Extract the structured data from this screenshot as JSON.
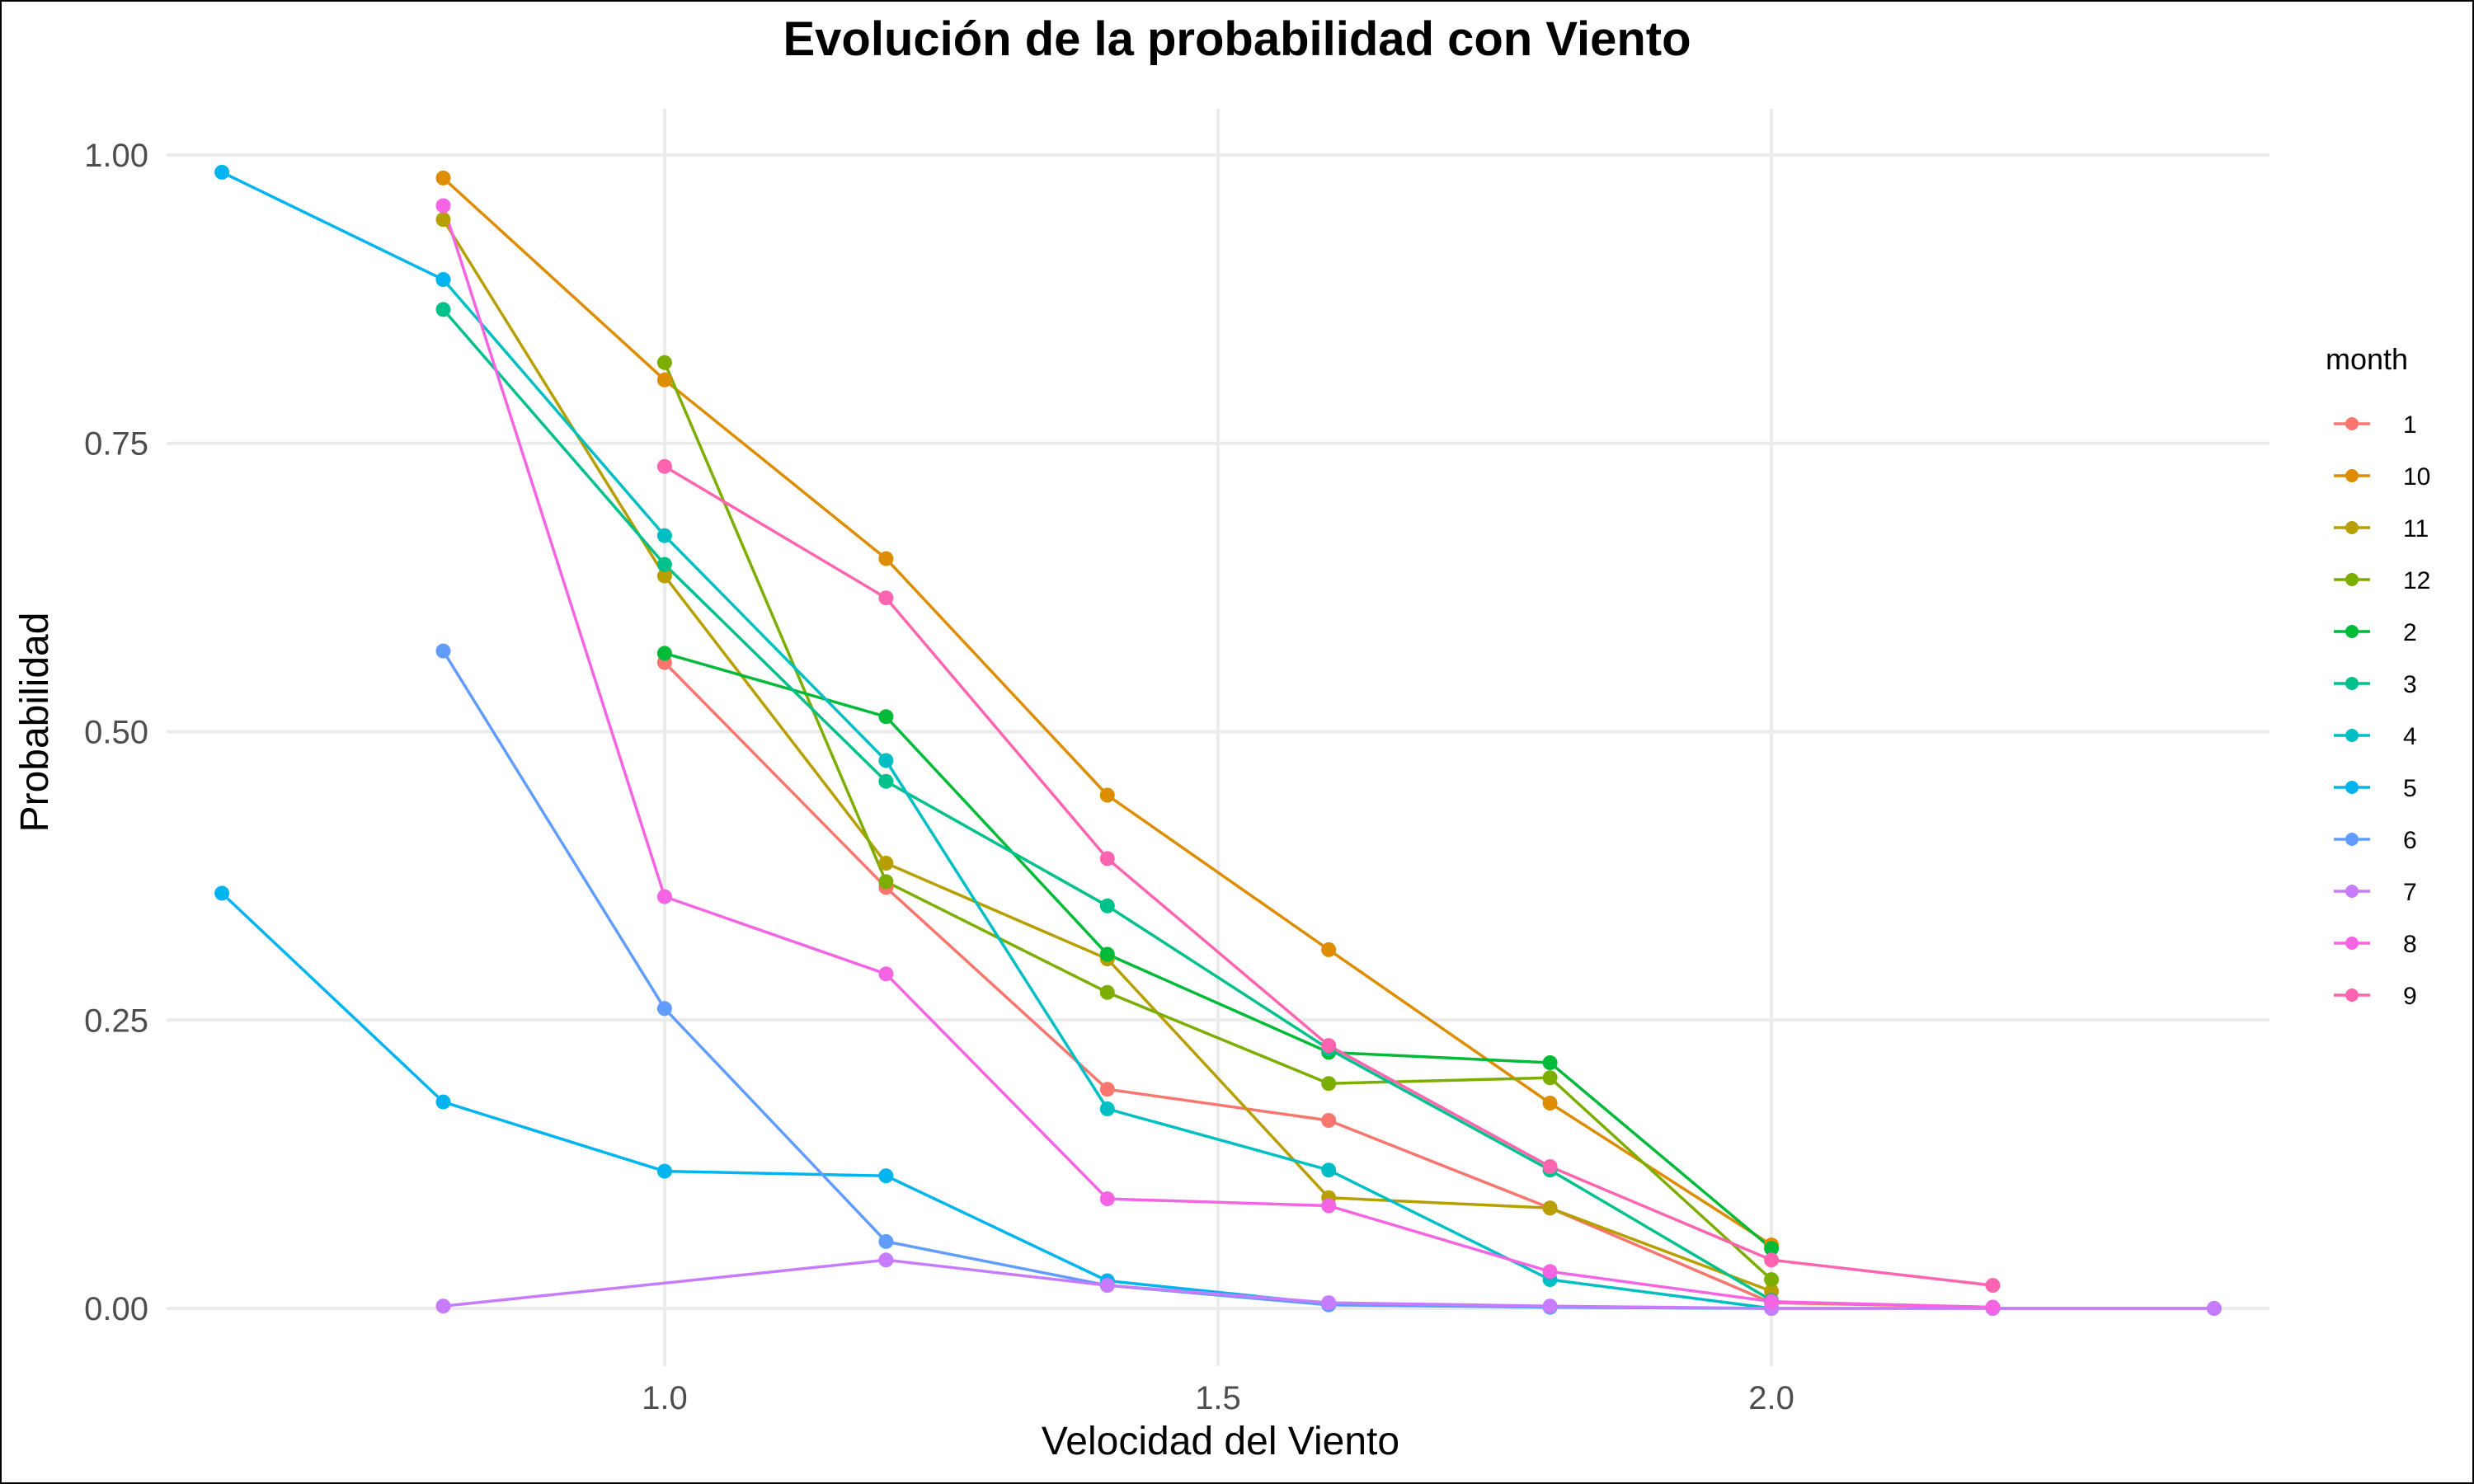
{
  "chart_data": {
    "type": "line",
    "title": "Evolución de la probabilidad con Viento",
    "xlabel": "Velocidad del Viento",
    "ylabel": "Probabilidad",
    "xlim": [
      0.6,
      2.4
    ],
    "ylim": [
      0,
      1
    ],
    "x_ticks": [
      1.0,
      1.5,
      2.0
    ],
    "x_tick_labels": [
      "1.0",
      "1.5",
      "2.0"
    ],
    "y_ticks": [
      0,
      0.25,
      0.5,
      0.75,
      1.0
    ],
    "y_tick_labels": [
      "0.00",
      "0.25",
      "0.50",
      "0.75",
      "1.00"
    ],
    "grid": true,
    "legend_title": "month",
    "legend_position": "right",
    "series": [
      {
        "name": "1",
        "color": "#F8766D",
        "points": [
          [
            1.0,
            0.56
          ],
          [
            1.2,
            0.365
          ],
          [
            1.4,
            0.19
          ],
          [
            1.6,
            0.163
          ],
          [
            1.8,
            0.087
          ],
          [
            2.0,
            0.005
          ],
          [
            2.2,
            0.001
          ]
        ]
      },
      {
        "name": "10",
        "color": "#DE8C00",
        "points": [
          [
            0.8,
            0.98
          ],
          [
            1.0,
            0.805
          ],
          [
            1.2,
            0.65
          ],
          [
            1.4,
            0.445
          ],
          [
            1.6,
            0.311
          ],
          [
            1.8,
            0.178
          ],
          [
            2.0,
            0.055
          ]
        ]
      },
      {
        "name": "11",
        "color": "#B79F00",
        "points": [
          [
            0.8,
            0.944
          ],
          [
            1.0,
            0.635
          ],
          [
            1.2,
            0.386
          ],
          [
            1.4,
            0.303
          ],
          [
            1.6,
            0.096
          ],
          [
            1.8,
            0.087
          ],
          [
            2.0,
            0.015
          ]
        ]
      },
      {
        "name": "12",
        "color": "#7CAE00",
        "points": [
          [
            1.0,
            0.82
          ],
          [
            1.2,
            0.37
          ],
          [
            1.4,
            0.274
          ],
          [
            1.6,
            0.195
          ],
          [
            1.8,
            0.2
          ],
          [
            2.0,
            0.025
          ]
        ]
      },
      {
        "name": "2",
        "color": "#00BA38",
        "points": [
          [
            1.0,
            0.568
          ],
          [
            1.2,
            0.513
          ],
          [
            1.4,
            0.307
          ],
          [
            1.6,
            0.222
          ],
          [
            1.8,
            0.213
          ],
          [
            2.0,
            0.052
          ]
        ]
      },
      {
        "name": "3",
        "color": "#00C08B",
        "points": [
          [
            0.8,
            0.866
          ],
          [
            1.0,
            0.645
          ],
          [
            1.2,
            0.457
          ],
          [
            1.4,
            0.349
          ],
          [
            1.6,
            0.225
          ],
          [
            1.8,
            0.12
          ],
          [
            2.0,
            0.007
          ]
        ]
      },
      {
        "name": "4",
        "color": "#00BFC4",
        "points": [
          [
            0.8,
            0.892
          ],
          [
            1.0,
            0.67
          ],
          [
            1.2,
            0.475
          ],
          [
            1.4,
            0.173
          ],
          [
            1.6,
            0.12
          ],
          [
            1.8,
            0.025
          ],
          [
            2.0,
            0.0
          ]
        ]
      },
      {
        "name": "5",
        "color": "#00B4F0",
        "points": [
          [
            0.6,
            0.985
          ],
          [
            0.8,
            0.892
          ]
        ],
        "points_b": [
          [
            0.6,
            0.36
          ],
          [
            0.8,
            0.179
          ],
          [
            1.0,
            0.119
          ],
          [
            1.2,
            0.115
          ],
          [
            1.4,
            0.024
          ],
          [
            1.6,
            0.004
          ],
          [
            1.8,
            0.001
          ],
          [
            2.0,
            0.0
          ]
        ]
      },
      {
        "name": "6",
        "color": "#619CFF",
        "points": [
          [
            0.8,
            0.57
          ],
          [
            1.0,
            0.26
          ],
          [
            1.2,
            0.058
          ],
          [
            1.4,
            0.02
          ],
          [
            1.6,
            0.003
          ],
          [
            1.8,
            0.001
          ],
          [
            2.0,
            0.0
          ],
          [
            2.2,
            0.0
          ],
          [
            2.4,
            0.0
          ]
        ]
      },
      {
        "name": "7",
        "color": "#C77CFF",
        "points": [
          [
            0.8,
            0.002
          ],
          [
            1.2,
            0.042
          ],
          [
            1.4,
            0.02
          ],
          [
            1.6,
            0.005
          ],
          [
            1.8,
            0.002
          ],
          [
            2.0,
            0.0
          ],
          [
            2.2,
            0.0
          ],
          [
            2.4,
            0.0
          ]
        ]
      },
      {
        "name": "8",
        "color": "#F564E3",
        "points": [
          [
            0.8,
            0.956
          ],
          [
            1.0,
            0.357
          ],
          [
            1.2,
            0.29
          ],
          [
            1.4,
            0.095
          ],
          [
            1.6,
            0.089
          ],
          [
            1.8,
            0.032
          ],
          [
            2.0,
            0.006
          ],
          [
            2.2,
            0.001
          ]
        ]
      },
      {
        "name": "9",
        "color": "#FF64B0",
        "points": [
          [
            1.0,
            0.73
          ],
          [
            1.2,
            0.616
          ],
          [
            1.4,
            0.39
          ],
          [
            1.6,
            0.228
          ],
          [
            1.8,
            0.123
          ],
          [
            2.0,
            0.042
          ],
          [
            2.2,
            0.02
          ]
        ]
      }
    ]
  }
}
